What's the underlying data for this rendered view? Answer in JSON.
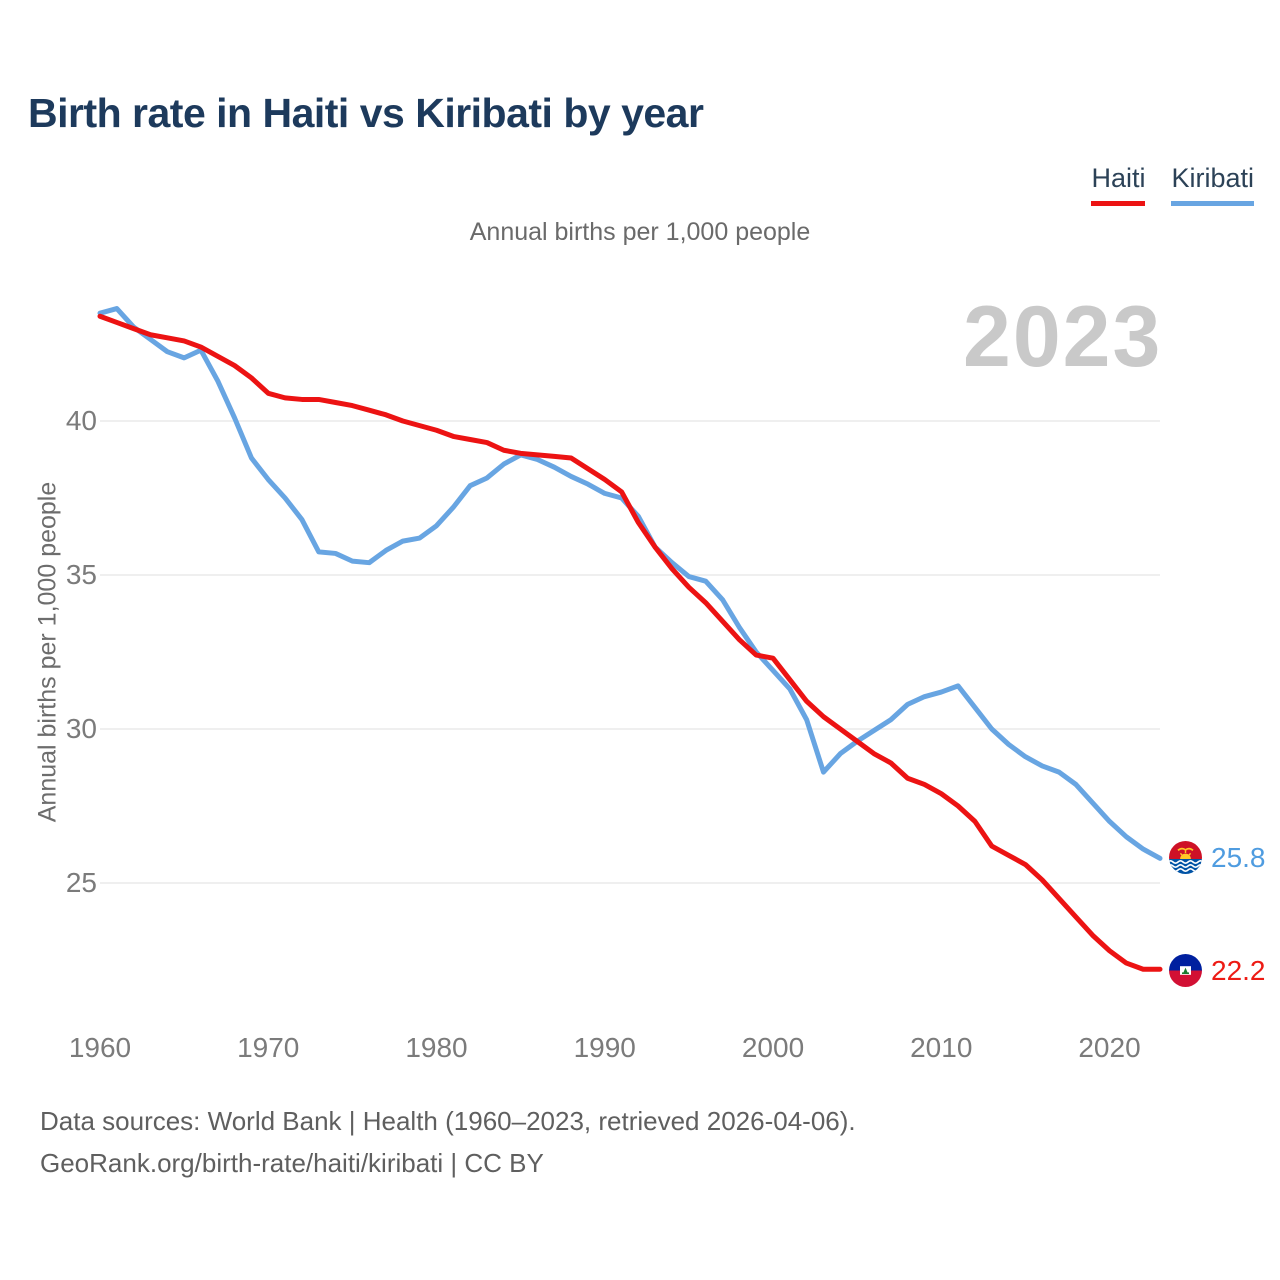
{
  "header": {
    "title": "Birth rate in Haiti vs Kiribati by year"
  },
  "legend": [
    {
      "label": "Haiti",
      "color": "#ec1313"
    },
    {
      "label": "Kiribati",
      "color": "#68a5e2"
    }
  ],
  "subtitle": "Annual births per 1,000 people",
  "watermark": "2023",
  "y_axis": {
    "label": "Annual births per 1,000 people",
    "ticks": [
      40,
      35,
      30,
      25
    ]
  },
  "x_axis": {
    "ticks": [
      1960,
      1970,
      1980,
      1990,
      2000,
      2010,
      2020
    ]
  },
  "end_labels": {
    "kiribati": {
      "value": "25.8",
      "flag": "kiribati-flag"
    },
    "haiti": {
      "value": "22.2",
      "flag": "haiti-flag"
    }
  },
  "footer": {
    "line1": "Data sources: World Bank | Health (1960–2023, retrieved 2026-04-06).",
    "line2": "GeoRank.org/birth-rate/haiti/kiribati | CC BY"
  },
  "chart_data": {
    "type": "line",
    "title": "Birth rate in Haiti vs Kiribati by year",
    "subtitle": "Annual births per 1,000 people",
    "ylabel": "Annual births per 1,000 people",
    "xlabel": "",
    "grid": true,
    "legend_position": "top-right",
    "ylim": [
      21,
      44.5
    ],
    "yticks": [
      25,
      30,
      35,
      40
    ],
    "xticks": [
      1960,
      1970,
      1980,
      1990,
      2000,
      2010,
      2020
    ],
    "x": [
      1960,
      1961,
      1962,
      1963,
      1964,
      1965,
      1966,
      1967,
      1968,
      1969,
      1970,
      1971,
      1972,
      1973,
      1974,
      1975,
      1976,
      1977,
      1978,
      1979,
      1980,
      1981,
      1982,
      1983,
      1984,
      1985,
      1986,
      1987,
      1988,
      1989,
      1990,
      1991,
      1992,
      1993,
      1994,
      1995,
      1996,
      1997,
      1998,
      1999,
      2000,
      2001,
      2002,
      2003,
      2004,
      2005,
      2006,
      2007,
      2008,
      2009,
      2010,
      2011,
      2012,
      2013,
      2014,
      2015,
      2016,
      2017,
      2018,
      2019,
      2020,
      2021,
      2022,
      2023
    ],
    "series": [
      {
        "name": "Haiti",
        "color": "#ec1313",
        "values": [
          43.4,
          43.2,
          43.0,
          42.8,
          42.7,
          42.6,
          42.4,
          42.1,
          41.8,
          41.4,
          40.9,
          40.75,
          40.7,
          40.7,
          40.6,
          40.5,
          40.35,
          40.2,
          40.0,
          39.85,
          39.7,
          39.5,
          39.4,
          39.3,
          39.05,
          38.95,
          38.9,
          38.85,
          38.8,
          38.45,
          38.1,
          37.7,
          36.7,
          35.9,
          35.2,
          34.6,
          34.1,
          33.5,
          32.9,
          32.4,
          32.3,
          31.6,
          30.9,
          30.4,
          30.0,
          29.6,
          29.2,
          28.9,
          28.4,
          28.2,
          27.9,
          27.5,
          27.0,
          26.2,
          25.9,
          25.6,
          25.1,
          24.5,
          23.9,
          23.3,
          22.8,
          22.4,
          22.2,
          22.2
        ]
      },
      {
        "name": "Kiribati",
        "color": "#68a5e2",
        "values": [
          43.5,
          43.65,
          43.05,
          42.65,
          42.25,
          42.05,
          42.3,
          41.3,
          40.1,
          38.8,
          38.1,
          37.5,
          36.8,
          35.75,
          35.7,
          35.45,
          35.4,
          35.8,
          36.1,
          36.2,
          36.6,
          37.2,
          37.9,
          38.15,
          38.6,
          38.9,
          38.75,
          38.5,
          38.2,
          37.95,
          37.65,
          37.5,
          36.9,
          35.9,
          35.4,
          34.95,
          34.8,
          34.2,
          33.3,
          32.5,
          31.9,
          31.3,
          30.3,
          28.6,
          29.2,
          29.6,
          29.95,
          30.3,
          30.8,
          31.05,
          31.2,
          31.4,
          30.7,
          30.0,
          29.5,
          29.1,
          28.8,
          28.6,
          28.2,
          27.6,
          27.0,
          26.5,
          26.1,
          25.8
        ]
      }
    ],
    "end_labels": {
      "Haiti": "22.2",
      "Kiribati": "25.8"
    },
    "watermark": "2023"
  }
}
